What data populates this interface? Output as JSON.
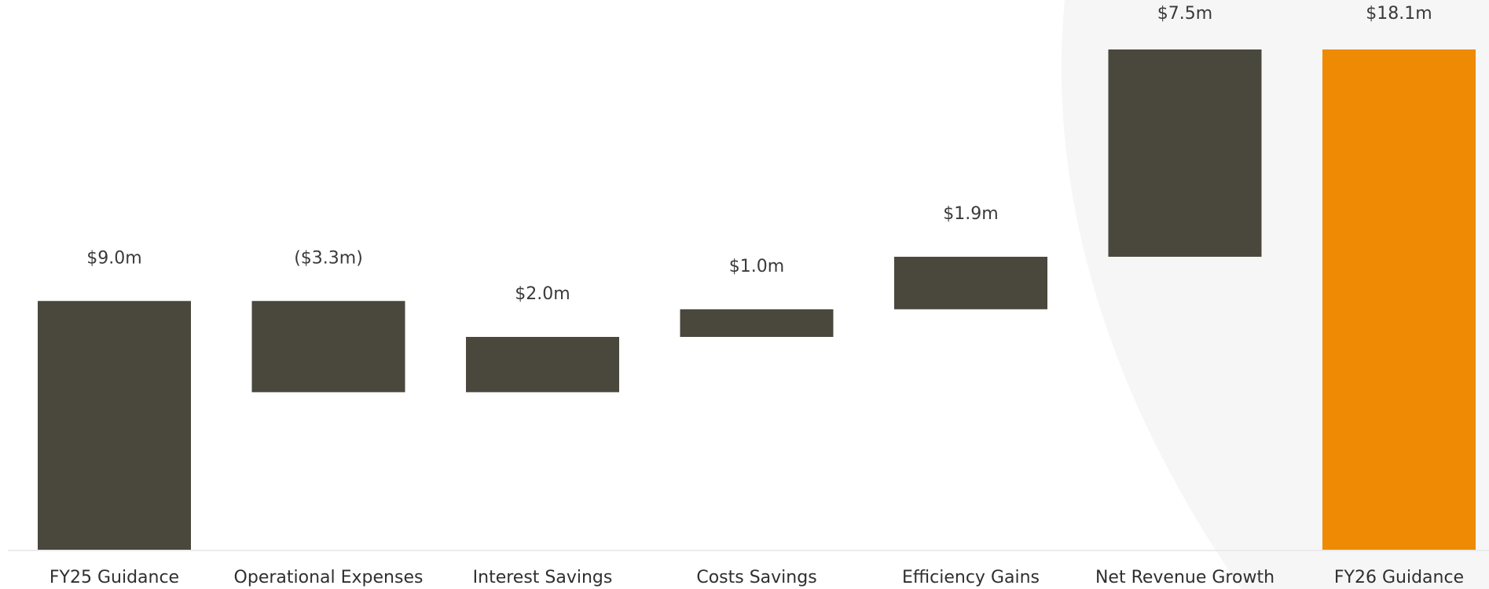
{
  "chart_data": {
    "type": "bar",
    "subtype": "waterfall",
    "categories": [
      "FY25 Guidance",
      "Operational Expenses",
      "Interest Savings",
      "Costs  Savings",
      "Efficiency Gains",
      "Net Revenue Growth",
      "FY26 Guidance"
    ],
    "values": [
      9.0,
      -3.3,
      2.0,
      1.0,
      1.9,
      7.5,
      18.1
    ],
    "kinds": [
      "total",
      "delta",
      "delta",
      "delta",
      "delta",
      "delta",
      "total"
    ],
    "data_labels": [
      "$9.0m",
      "($3.3m)",
      "$2.0m",
      "$1.0m",
      "$1.9m",
      "$7.5m",
      "$18.1m"
    ],
    "unit": "$m",
    "ylim": [
      0,
      18.1
    ],
    "grid": false,
    "legend": "none",
    "colors": {
      "bar": "#4a473c",
      "total_final": "#ee8a04",
      "baseline": "#e6e6e6",
      "backdrop_arc": "#f6f6f6"
    }
  }
}
